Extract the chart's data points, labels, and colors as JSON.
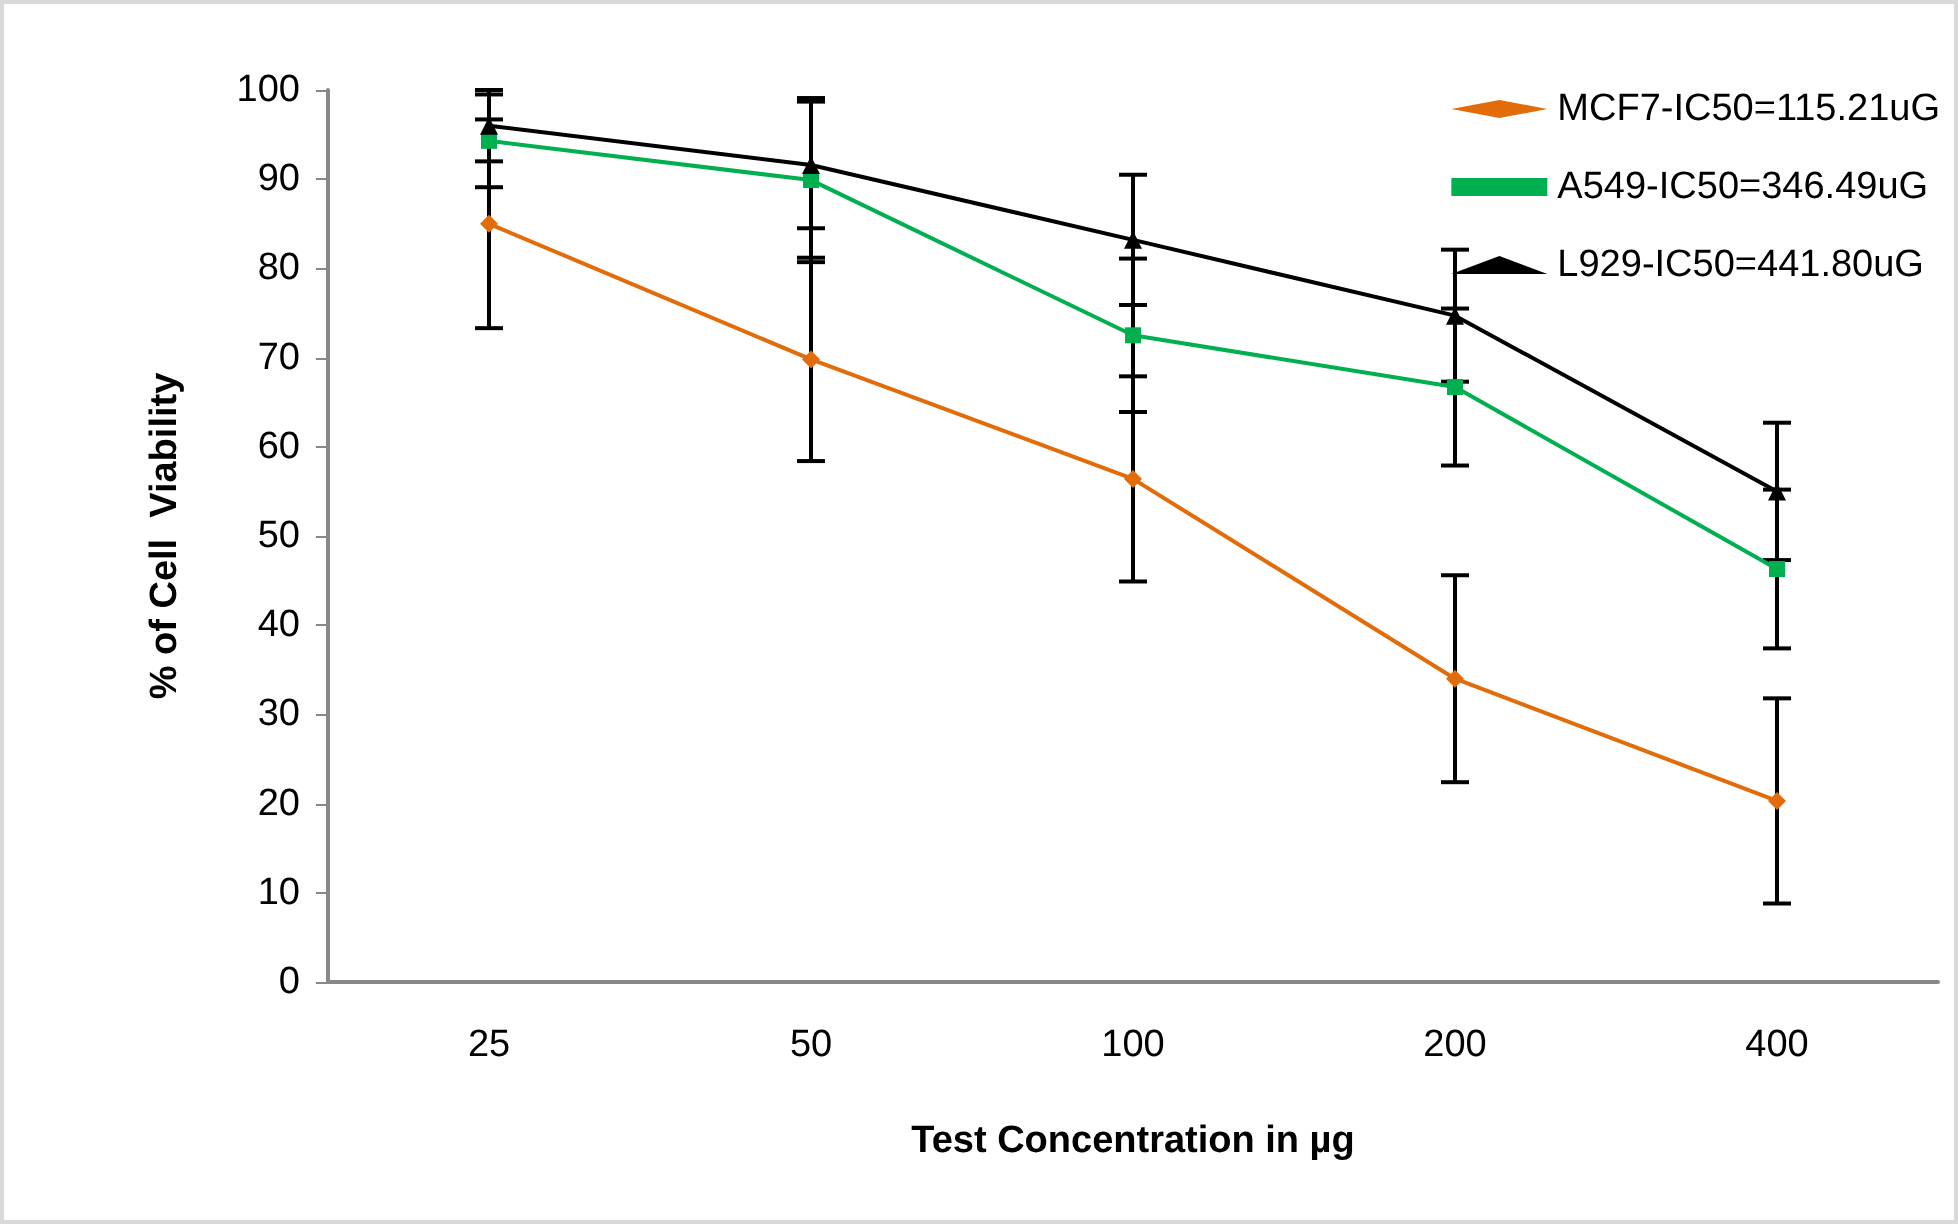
{
  "chart_data": {
    "type": "line",
    "xlabel": "Test Concentration in µg",
    "ylabel": "% of Cell  Viability",
    "categories": [
      "25",
      "50",
      "100",
      "200",
      "400"
    ],
    "series": [
      {
        "name": "MCF7-IC50=115.21uG",
        "color": "#e36c0a",
        "marker": "diamond",
        "values": [
          85,
          69.8,
          56.4,
          34,
          20.3
        ],
        "errors": [
          11.7,
          11.4,
          11.5,
          11.6,
          11.5
        ]
      },
      {
        "name": "A549-IC50=346.49uG",
        "color": "#00b050",
        "marker": "square",
        "values": [
          94.3,
          89.9,
          72.5,
          66.7,
          46.3
        ],
        "errors": [
          5.2,
          9.2,
          8.6,
          8.8,
          8.9
        ]
      },
      {
        "name": "L929-IC50=441.80uG",
        "color": "#000000",
        "marker": "triangle",
        "values": [
          96,
          91.6,
          83.2,
          74.7,
          55
        ],
        "errors": [
          4,
          7.1,
          7.3,
          7.4,
          7.7
        ]
      }
    ],
    "ylim": [
      0,
      100
    ],
    "yticks": [
      0,
      10,
      20,
      30,
      40,
      50,
      60,
      70,
      80,
      90,
      100
    ],
    "grid": false,
    "legend": "top right",
    "line_style": "solid"
  }
}
